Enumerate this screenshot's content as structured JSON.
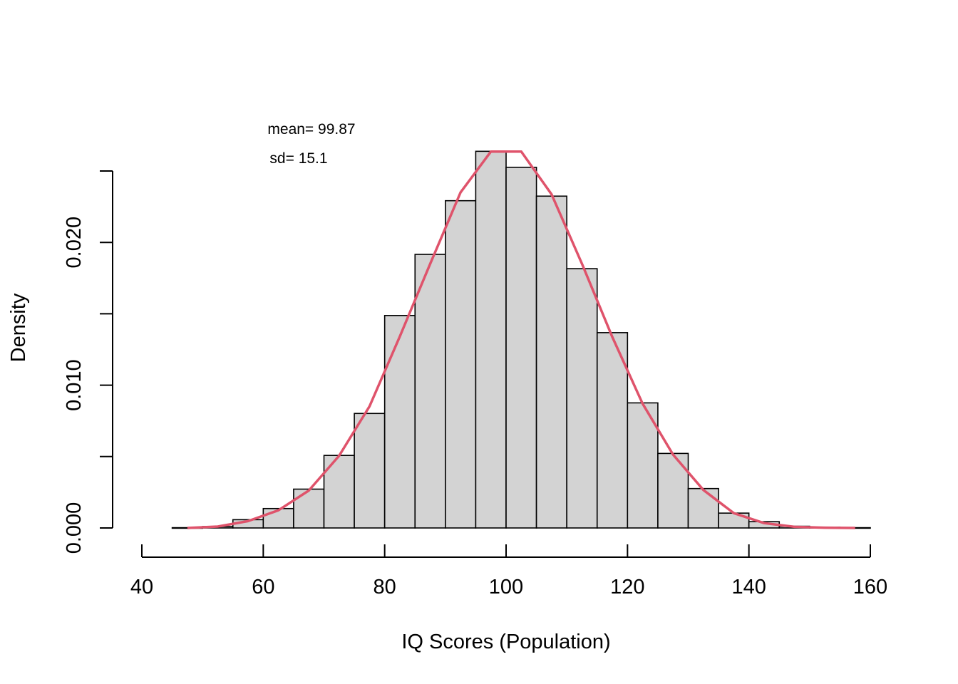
{
  "colors": {
    "bar_fill": "#d3d3d3",
    "bar_stroke": "#000000",
    "density_line": "#df536b"
  },
  "chart_data": {
    "type": "bar",
    "subtype": "histogram-with-density",
    "title": "",
    "xlabel": "IQ Scores (Population)",
    "ylabel": "Density",
    "xlim": [
      40,
      160
    ],
    "ylim": [
      0,
      0.025
    ],
    "x_ticks": [
      40,
      60,
      80,
      100,
      120,
      140,
      160
    ],
    "x_tick_labels": [
      "40",
      "60",
      "80",
      "100",
      "120",
      "140",
      "160"
    ],
    "y_ticks": [
      0,
      0.005,
      0.01,
      0.015,
      0.02,
      0.025
    ],
    "y_tick_labels": [
      "0.000",
      "",
      "0.010",
      "",
      "0.020",
      ""
    ],
    "grid": false,
    "annotations": [
      {
        "text": "mean= 99.87"
      },
      {
        "text": "sd= 15.1"
      }
    ],
    "bins": {
      "breaks": [
        45,
        50,
        55,
        60,
        65,
        70,
        75,
        80,
        85,
        90,
        95,
        100,
        105,
        110,
        115,
        120,
        125,
        130,
        135,
        140,
        145,
        150,
        155,
        160
      ],
      "density": [
        2e-05,
        0.0001,
        0.00058,
        0.00136,
        0.00272,
        0.00508,
        0.00802,
        0.01488,
        0.01916,
        0.02292,
        0.02638,
        0.02526,
        0.02324,
        0.01816,
        0.01368,
        0.00876,
        0.00522,
        0.00276,
        0.00104,
        0.00044,
        0.00012,
        6e-05,
        2e-05
      ]
    },
    "series": [
      {
        "type": "line",
        "x": [
          47.5,
          52.5,
          57.5,
          62.5,
          67.5,
          72.5,
          77.5,
          82.5,
          87.5,
          92.5,
          97.5,
          102.5,
          107.5,
          112.5,
          117.5,
          122.5,
          127.5,
          132.5,
          137.5,
          142.5,
          147.5,
          152.5,
          157.5
        ],
        "values": [
          0.0,
          0.0001,
          0.00048,
          0.00124,
          0.00262,
          0.00506,
          0.00852,
          0.01342,
          0.0185,
          0.0235,
          0.02636,
          0.02636,
          0.02336,
          0.0185,
          0.01338,
          0.0087,
          0.00514,
          0.00266,
          0.00104,
          0.00034,
          8e-05,
          2e-05,
          0.0
        ]
      }
    ]
  }
}
